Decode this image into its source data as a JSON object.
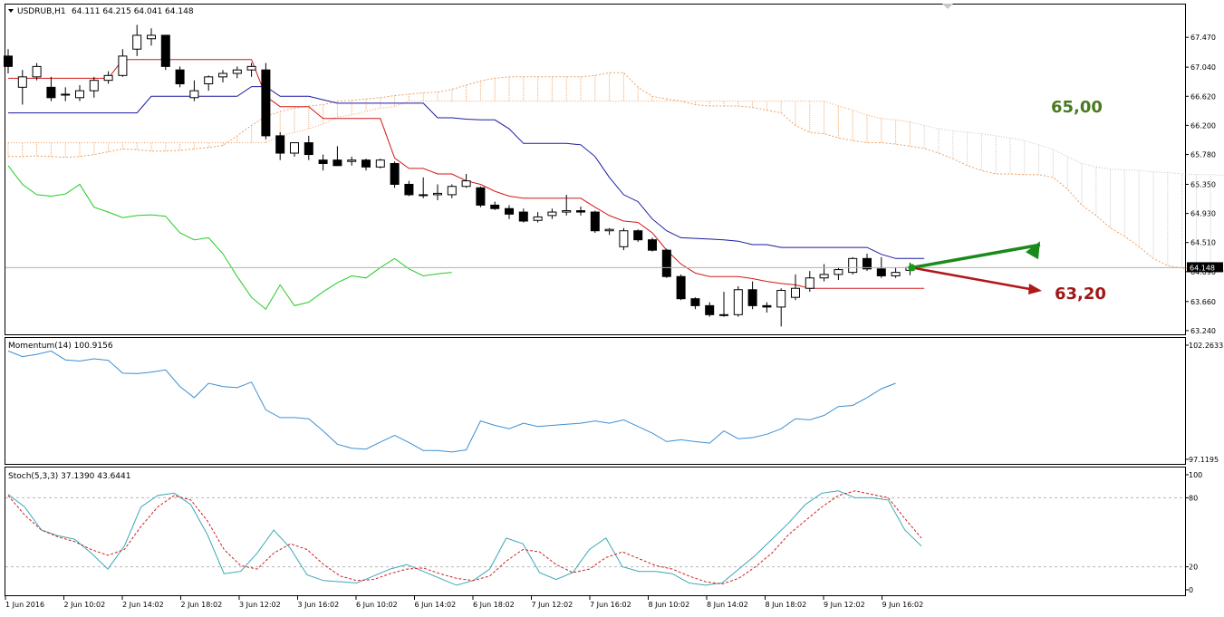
{
  "chart_data": {
    "type": "candlestick",
    "main": {
      "symbol_label": "USDRUB,H1",
      "ohlc_text": "64.111 64.215 64.041 64.148",
      "last_price_label": "64.148",
      "yticks": [
        "67.470",
        "67.040",
        "66.620",
        "66.200",
        "65.780",
        "65.350",
        "64.930",
        "64.510",
        "64.090",
        "63.660",
        "63.240"
      ],
      "ylim": [
        63.18,
        67.95
      ],
      "candles": [
        {
          "o": 67.2,
          "h": 67.3,
          "l": 66.95,
          "c": 67.05
        },
        {
          "o": 66.75,
          "h": 67.0,
          "l": 66.5,
          "c": 66.9
        },
        {
          "o": 66.9,
          "h": 67.1,
          "l": 66.85,
          "c": 67.05
        },
        {
          "o": 66.75,
          "h": 66.9,
          "l": 66.55,
          "c": 66.6
        },
        {
          "o": 66.65,
          "h": 66.75,
          "l": 66.55,
          "c": 66.65
        },
        {
          "o": 66.6,
          "h": 66.78,
          "l": 66.55,
          "c": 66.7
        },
        {
          "o": 66.7,
          "h": 66.9,
          "l": 66.6,
          "c": 66.85
        },
        {
          "o": 66.85,
          "h": 66.98,
          "l": 66.8,
          "c": 66.92
        },
        {
          "o": 66.92,
          "h": 67.3,
          "l": 66.9,
          "c": 67.2
        },
        {
          "o": 67.3,
          "h": 67.65,
          "l": 67.2,
          "c": 67.5
        },
        {
          "o": 67.45,
          "h": 67.6,
          "l": 67.35,
          "c": 67.5
        },
        {
          "o": 67.5,
          "h": 67.5,
          "l": 67.0,
          "c": 67.05
        },
        {
          "o": 67.0,
          "h": 67.05,
          "l": 66.75,
          "c": 66.8
        },
        {
          "o": 66.6,
          "h": 66.85,
          "l": 66.55,
          "c": 66.7
        },
        {
          "o": 66.8,
          "h": 66.92,
          "l": 66.7,
          "c": 66.9
        },
        {
          "o": 66.9,
          "h": 67.0,
          "l": 66.82,
          "c": 66.95
        },
        {
          "o": 66.95,
          "h": 67.05,
          "l": 66.88,
          "c": 67.0
        },
        {
          "o": 67.0,
          "h": 67.1,
          "l": 66.9,
          "c": 67.05
        },
        {
          "o": 67.0,
          "h": 67.1,
          "l": 66.0,
          "c": 66.05
        },
        {
          "o": 66.05,
          "h": 66.1,
          "l": 65.7,
          "c": 65.8
        },
        {
          "o": 65.8,
          "h": 65.95,
          "l": 65.75,
          "c": 65.95
        },
        {
          "o": 65.95,
          "h": 66.05,
          "l": 65.7,
          "c": 65.78
        },
        {
          "o": 65.7,
          "h": 65.78,
          "l": 65.55,
          "c": 65.65
        },
        {
          "o": 65.7,
          "h": 65.9,
          "l": 65.62,
          "c": 65.62
        },
        {
          "o": 65.68,
          "h": 65.75,
          "l": 65.62,
          "c": 65.7
        },
        {
          "o": 65.7,
          "h": 65.72,
          "l": 65.55,
          "c": 65.6
        },
        {
          "o": 65.6,
          "h": 65.72,
          "l": 65.58,
          "c": 65.7
        },
        {
          "o": 65.65,
          "h": 65.68,
          "l": 65.3,
          "c": 65.35
        },
        {
          "o": 65.35,
          "h": 65.4,
          "l": 65.18,
          "c": 65.2
        },
        {
          "o": 65.2,
          "h": 65.45,
          "l": 65.15,
          "c": 65.2
        },
        {
          "o": 65.2,
          "h": 65.35,
          "l": 65.12,
          "c": 65.22
        },
        {
          "o": 65.2,
          "h": 65.35,
          "l": 65.15,
          "c": 65.32
        },
        {
          "o": 65.32,
          "h": 65.5,
          "l": 65.3,
          "c": 65.4
        },
        {
          "o": 65.3,
          "h": 65.32,
          "l": 65.02,
          "c": 65.05
        },
        {
          "o": 65.05,
          "h": 65.1,
          "l": 64.98,
          "c": 65.0
        },
        {
          "o": 65.0,
          "h": 65.05,
          "l": 64.85,
          "c": 64.92
        },
        {
          "o": 64.95,
          "h": 65.0,
          "l": 64.8,
          "c": 64.82
        },
        {
          "o": 64.83,
          "h": 64.95,
          "l": 64.8,
          "c": 64.88
        },
        {
          "o": 64.9,
          "h": 65.0,
          "l": 64.85,
          "c": 64.95
        },
        {
          "o": 64.95,
          "h": 65.2,
          "l": 64.9,
          "c": 64.97
        },
        {
          "o": 64.97,
          "h": 65.03,
          "l": 64.9,
          "c": 64.95
        },
        {
          "o": 64.95,
          "h": 64.97,
          "l": 64.65,
          "c": 64.68
        },
        {
          "o": 64.68,
          "h": 64.72,
          "l": 64.62,
          "c": 64.7
        },
        {
          "o": 64.45,
          "h": 64.72,
          "l": 64.4,
          "c": 64.68
        },
        {
          "o": 64.68,
          "h": 64.7,
          "l": 64.52,
          "c": 64.55
        },
        {
          "o": 64.55,
          "h": 64.58,
          "l": 64.38,
          "c": 64.4
        },
        {
          "o": 64.4,
          "h": 64.42,
          "l": 64.0,
          "c": 64.02
        },
        {
          "o": 64.02,
          "h": 64.05,
          "l": 63.68,
          "c": 63.7
        },
        {
          "o": 63.7,
          "h": 63.72,
          "l": 63.55,
          "c": 63.6
        },
        {
          "o": 63.6,
          "h": 63.65,
          "l": 63.44,
          "c": 63.47
        },
        {
          "o": 63.47,
          "h": 63.8,
          "l": 63.44,
          "c": 63.47
        },
        {
          "o": 63.47,
          "h": 63.88,
          "l": 63.44,
          "c": 63.83
        },
        {
          "o": 63.83,
          "h": 63.95,
          "l": 63.55,
          "c": 63.6
        },
        {
          "o": 63.6,
          "h": 63.65,
          "l": 63.5,
          "c": 63.58
        },
        {
          "o": 63.58,
          "h": 63.85,
          "l": 63.3,
          "c": 63.82
        },
        {
          "o": 63.72,
          "h": 64.05,
          "l": 63.68,
          "c": 63.85
        },
        {
          "o": 63.85,
          "h": 64.1,
          "l": 63.8,
          "c": 64.0
        },
        {
          "o": 64.0,
          "h": 64.2,
          "l": 63.95,
          "c": 64.05
        },
        {
          "o": 64.05,
          "h": 64.15,
          "l": 63.97,
          "c": 64.12
        },
        {
          "o": 64.08,
          "h": 64.3,
          "l": 64.05,
          "c": 64.28
        },
        {
          "o": 64.28,
          "h": 64.35,
          "l": 64.1,
          "c": 64.13
        },
        {
          "o": 64.13,
          "h": 64.3,
          "l": 64.0,
          "c": 64.03
        },
        {
          "o": 64.03,
          "h": 64.15,
          "l": 64.0,
          "c": 64.08
        },
        {
          "o": 64.11,
          "h": 64.22,
          "l": 64.04,
          "c": 64.15
        }
      ],
      "kijun": [
        66.88,
        66.88,
        66.88,
        66.88,
        66.88,
        66.88,
        66.88,
        66.88,
        67.15,
        67.15,
        67.15,
        67.15,
        67.15,
        67.15,
        67.15,
        67.15,
        67.15,
        67.15,
        66.62,
        66.47,
        66.47,
        66.47,
        66.3,
        66.3,
        66.3,
        66.3,
        66.3,
        65.73,
        65.58,
        65.58,
        65.5,
        65.5,
        65.4,
        65.35,
        65.25,
        65.18,
        65.15,
        65.15,
        65.15,
        65.15,
        65.15,
        65.02,
        64.9,
        64.82,
        64.8,
        64.65,
        64.4,
        64.2,
        64.07,
        64.02,
        64.02,
        64.02,
        63.99,
        63.95,
        63.92,
        63.9,
        63.85,
        63.85,
        63.85,
        63.85,
        63.85,
        63.85,
        63.85,
        63.85,
        63.85
      ],
      "tenkan": [
        66.38,
        66.38,
        66.38,
        66.38,
        66.38,
        66.38,
        66.38,
        66.38,
        66.38,
        66.38,
        66.62,
        66.62,
        66.62,
        66.62,
        66.62,
        66.62,
        66.62,
        66.76,
        66.76,
        66.62,
        66.62,
        66.62,
        66.57,
        66.52,
        66.52,
        66.52,
        66.52,
        66.52,
        66.52,
        66.52,
        66.31,
        66.31,
        66.29,
        66.28,
        66.28,
        66.15,
        65.94,
        65.94,
        65.94,
        65.94,
        65.92,
        65.75,
        65.45,
        65.2,
        65.1,
        64.85,
        64.68,
        64.58,
        64.57,
        64.56,
        64.55,
        64.53,
        64.48,
        64.48,
        64.44,
        64.44,
        64.44,
        64.44,
        64.44,
        64.44,
        64.44,
        64.34,
        64.28,
        64.28,
        64.28
      ],
      "chikou": [
        65.62,
        65.35,
        65.2,
        65.18,
        65.21,
        65.35,
        65.02,
        64.95,
        64.87,
        64.9,
        64.91,
        64.89,
        64.65,
        64.55,
        64.58,
        64.35,
        64.02,
        63.72,
        63.55,
        63.9,
        63.6,
        63.65,
        63.8,
        63.93,
        64.03,
        64.0,
        64.15,
        64.28,
        64.13,
        64.03,
        64.06,
        64.08
      ],
      "span_a": [
        65.75,
        65.75,
        65.76,
        65.75,
        65.74,
        65.75,
        65.78,
        65.82,
        65.86,
        65.85,
        65.83,
        65.83,
        65.84,
        65.86,
        65.88,
        65.91,
        66.05,
        66.2,
        66.33,
        66.4,
        66.45,
        66.48,
        66.5,
        66.55,
        66.56,
        66.58,
        66.6,
        66.63,
        66.65,
        66.67,
        66.68,
        66.72,
        66.78,
        66.84,
        66.88,
        66.9,
        66.9,
        66.9,
        66.9,
        66.9,
        66.9,
        66.92,
        66.96,
        66.96,
        66.75,
        66.62,
        66.58,
        66.55,
        66.5,
        66.48,
        66.48,
        66.48,
        66.46,
        66.42,
        66.38,
        66.2,
        66.1,
        66.08,
        66.02,
        65.98,
        65.95,
        65.95,
        65.93,
        65.9,
        65.87,
        65.8,
        65.72,
        65.62,
        65.55,
        65.5,
        65.5,
        65.49,
        65.49,
        65.45,
        65.28,
        65.05,
        64.9,
        64.72,
        64.6,
        64.45,
        64.28,
        64.18,
        64.14,
        64.12,
        64.1,
        64.1,
        64.09,
        64.09,
        64.09
      ],
      "span_b": [
        65.95,
        65.95,
        65.95,
        65.95,
        65.95,
        65.95,
        65.95,
        65.95,
        65.95,
        65.95,
        65.95,
        65.95,
        65.95,
        65.95,
        65.95,
        65.95,
        65.95,
        65.95,
        65.95,
        66.05,
        66.1,
        66.15,
        66.22,
        66.32,
        66.35,
        66.4,
        66.45,
        66.47,
        66.55,
        66.55,
        66.55,
        66.55,
        66.55,
        66.55,
        66.55,
        66.55,
        66.55,
        66.55,
        66.55,
        66.55,
        66.55,
        66.55,
        66.55,
        66.55,
        66.55,
        66.55,
        66.55,
        66.55,
        66.55,
        66.55,
        66.55,
        66.55,
        66.55,
        66.55,
        66.55,
        66.55,
        66.55,
        66.55,
        66.48,
        66.42,
        66.35,
        66.3,
        66.28,
        66.25,
        66.2,
        66.15,
        66.12,
        66.1,
        66.08,
        66.05,
        66.02,
        65.98,
        65.92,
        65.85,
        65.75,
        65.65,
        65.6,
        65.57,
        65.56,
        65.55,
        65.53,
        65.52,
        65.5,
        65.49,
        65.49,
        65.48,
        65.48,
        65.46,
        65.44
      ],
      "arrow_up_label": "65,00",
      "arrow_down_label": "63,20"
    },
    "momentum": {
      "label": "Momentum(14) 100.9156",
      "yticks": [
        "102.2633",
        "97.1195"
      ],
      "ylim": [
        97.1195,
        102.2633
      ],
      "values": [
        102.0,
        101.75,
        101.85,
        102.0,
        101.6,
        101.55,
        101.65,
        101.58,
        101.0,
        100.98,
        101.05,
        101.15,
        100.4,
        99.9,
        100.55,
        100.4,
        100.35,
        100.6,
        99.35,
        99.0,
        99.0,
        98.95,
        98.4,
        97.8,
        97.62,
        97.58,
        97.9,
        98.2,
        97.88,
        97.52,
        97.52,
        97.45,
        97.55,
        98.85,
        98.65,
        98.5,
        98.75,
        98.6,
        98.65,
        98.7,
        98.75,
        98.85,
        98.75,
        98.9,
        98.6,
        98.3,
        97.92,
        98.0,
        97.92,
        97.85,
        98.4,
        98.05,
        98.1,
        98.25,
        98.5,
        98.95,
        98.9,
        99.1,
        99.5,
        99.55,
        99.9,
        100.3,
        100.55
      ],
      "color": "#3c8fd4"
    },
    "stochastic": {
      "label": "Stoch(5,3,3) 37.1390 43.6441",
      "yticks": [
        "100",
        "80",
        "20",
        "0"
      ],
      "ylim": [
        0,
        100
      ],
      "main": [
        83,
        72,
        52,
        47,
        44,
        32,
        18,
        38,
        72,
        82,
        84,
        74,
        48,
        14,
        16,
        32,
        52,
        36,
        13,
        8,
        7,
        6,
        12,
        18,
        22,
        16,
        10,
        4,
        8,
        18,
        45,
        40,
        15,
        9,
        15,
        35,
        45,
        20,
        16,
        16,
        14,
        6,
        4,
        6,
        18,
        30,
        44,
        58,
        74,
        84,
        86,
        80,
        80,
        78,
        52,
        38
      ],
      "signal": [
        82,
        65,
        52,
        46,
        42,
        35,
        30,
        35,
        55,
        72,
        82,
        78,
        60,
        35,
        21,
        18,
        32,
        40,
        35,
        22,
        12,
        8,
        9,
        14,
        18,
        19,
        14,
        10,
        8,
        12,
        25,
        35,
        33,
        22,
        15,
        18,
        28,
        33,
        27,
        21,
        18,
        12,
        7,
        5,
        10,
        20,
        32,
        48,
        60,
        72,
        82,
        86,
        83,
        80,
        62,
        45
      ],
      "main_color": "#3aa8b8",
      "signal_color": "#d02020"
    },
    "x_labels": [
      "1 Jun 2016",
      "2 Jun 10:02",
      "2 Jun 14:02",
      "2 Jun 18:02",
      "3 Jun 12:02",
      "3 Jun 16:02",
      "6 Jun 10:02",
      "6 Jun 14:02",
      "6 Jun 18:02",
      "7 Jun 12:02",
      "7 Jun 16:02",
      "8 Jun 10:02",
      "8 Jun 14:02",
      "8 Jun 18:02",
      "9 Jun 12:02",
      "9 Jun 16:02"
    ],
    "colors": {
      "kijun": "#d41818",
      "tenkan": "#1a1aa0",
      "chikou": "#22cc22",
      "cloud": "#f0a060",
      "arrow_up": "#1a8a1a",
      "arrow_down": "#b01818",
      "up_label": "#4a7a20",
      "down_label": "#a01818"
    }
  }
}
